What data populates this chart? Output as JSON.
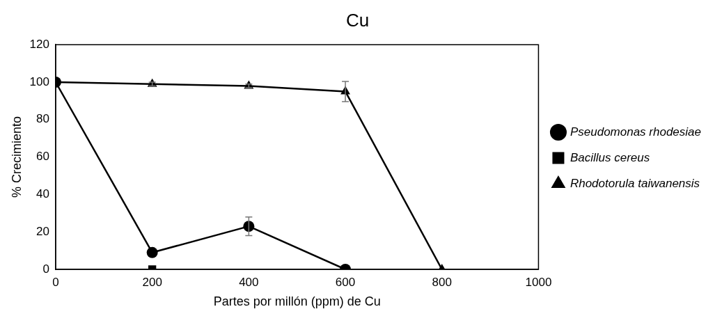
{
  "chart_data": {
    "type": "line",
    "title": "Cu",
    "xlabel": "Partes por millón (ppm) de Cu",
    "ylabel": "% Crecimiento",
    "xlim": [
      0,
      1000
    ],
    "xticks": [
      0,
      200,
      400,
      600,
      800,
      1000
    ],
    "ylim": [
      0,
      120
    ],
    "yticks": [
      0,
      20,
      40,
      60,
      80,
      100,
      120
    ],
    "grid": false,
    "legend": "right",
    "series": [
      {
        "name": "Pseudomonas rhodesiae",
        "color": "#000000",
        "marker": "circle",
        "x": [
          0,
          200,
          400,
          600
        ],
        "values": [
          100,
          9,
          23,
          0
        ],
        "errors": [
          null,
          null,
          5,
          null
        ]
      },
      {
        "name": "Bacillus cereus",
        "type": "scatter",
        "color": "#000000",
        "marker": "square",
        "x": [
          200
        ],
        "values": [
          0
        ]
      },
      {
        "name": "Rhodotorula taiwanensis",
        "color": "#000000",
        "marker": "triangle",
        "x": [
          0,
          200,
          400,
          600,
          800
        ],
        "values": [
          100,
          99,
          98,
          95,
          0
        ],
        "errors": [
          null,
          1,
          1,
          5.4,
          null
        ]
      }
    ]
  }
}
